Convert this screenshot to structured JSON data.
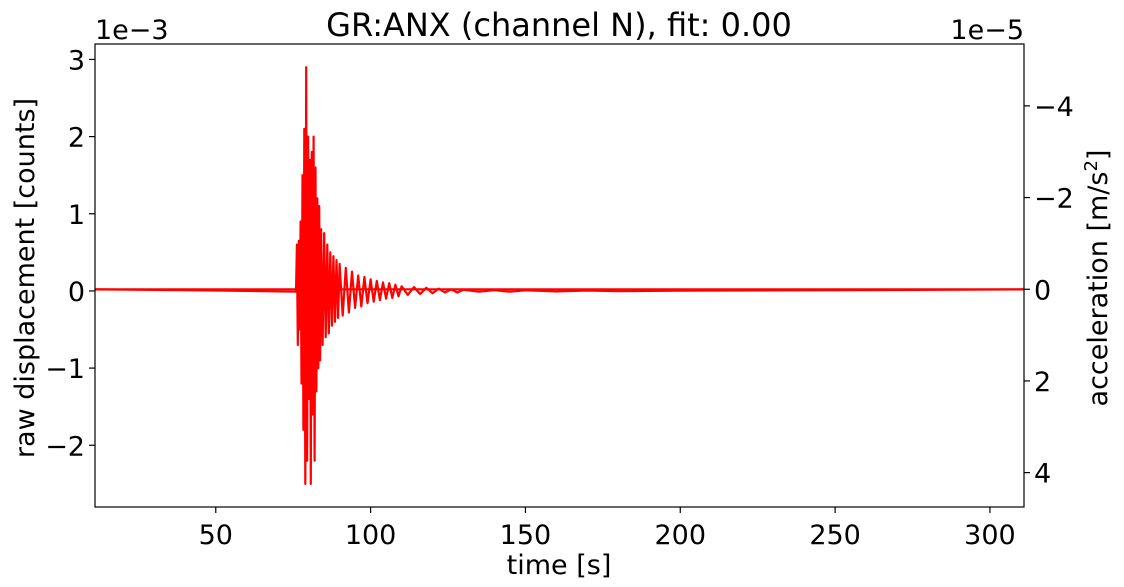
{
  "chart_data": {
    "type": "line",
    "title": "GR:ANX  (channel N), fit: 0.00",
    "xlabel": "time [s]",
    "ylabel": "raw displacement [counts]",
    "y2label_main": "acceleration [m/s",
    "y2label_sup": "2",
    "y2label_end": "]",
    "y_offset_text": "1e−3",
    "y2_offset_text": "1e−5",
    "xlim": [
      11,
      311
    ],
    "ylim": [
      -2.8,
      3.2
    ],
    "y2lim": [
      4.75,
      -5.35
    ],
    "x_ticks": [
      50,
      100,
      150,
      200,
      250,
      300
    ],
    "x_tick_labels": [
      "50",
      "100",
      "150",
      "200",
      "250",
      "300"
    ],
    "y_ticks": [
      3,
      2,
      1,
      0,
      -1,
      -2
    ],
    "y_tick_labels": [
      "3",
      "2",
      "1",
      "0",
      "−1",
      "−2"
    ],
    "y2_ticks": [
      -4,
      -2,
      0,
      2,
      4
    ],
    "y2_tick_labels": [
      "−4",
      "−2",
      "0",
      "2",
      "4"
    ],
    "grid": false,
    "line_color": "#ff0000",
    "series": [
      {
        "axis": "left",
        "x": [
          11,
          40,
          60,
          75.9,
          76.2,
          76.5,
          76.8,
          77.1,
          77.4,
          77.7,
          78.0,
          78.3,
          78.6,
          78.9,
          79.2,
          79.5,
          79.8,
          80.1,
          80.4,
          80.7,
          81.0,
          81.3,
          81.6,
          81.9,
          82.2,
          82.5,
          82.8,
          83.1,
          83.4,
          83.7,
          84.0,
          84.5,
          85.0,
          85.5,
          86.0,
          86.5,
          87.0,
          87.5,
          88.0,
          88.5,
          89.0,
          89.5,
          90.0,
          91.0,
          92.0,
          93.0,
          94.0,
          95.0,
          96.0,
          97.0,
          98.0,
          99.0,
          100.0,
          101.0,
          102.0,
          103.0,
          104.0,
          105.0,
          106.0,
          107.0,
          108.0,
          109.0,
          110.0,
          112.0,
          114.0,
          116.0,
          118.0,
          120.0,
          122.0,
          124.0,
          126.0,
          128.0,
          130.0,
          135.0,
          140.0,
          145.0,
          150.0,
          160.0,
          170.0,
          180.0,
          200.0,
          250.0,
          311.0
        ],
        "y": [
          0.02,
          0.01,
          0.0,
          -0.01,
          0.6,
          -0.7,
          0.65,
          -0.5,
          0.9,
          -1.2,
          1.5,
          -1.8,
          2.1,
          -2.5,
          2.9,
          -2.2,
          2.0,
          -1.4,
          1.7,
          -2.5,
          1.8,
          -1.6,
          2.0,
          -2.2,
          1.6,
          -1.3,
          1.2,
          -1.0,
          1.1,
          -0.9,
          0.8,
          -0.7,
          0.75,
          -0.6,
          0.6,
          -0.55,
          0.5,
          -0.45,
          0.45,
          -0.4,
          0.4,
          -0.35,
          0.35,
          -0.32,
          0.3,
          -0.28,
          0.25,
          -0.22,
          0.2,
          -0.2,
          0.18,
          -0.16,
          0.15,
          -0.14,
          0.13,
          -0.12,
          0.11,
          -0.1,
          0.1,
          -0.09,
          0.08,
          -0.07,
          0.06,
          -0.05,
          0.05,
          -0.04,
          0.04,
          -0.03,
          0.03,
          -0.02,
          0.02,
          -0.02,
          0.015,
          -0.01,
          0.01,
          -0.01,
          0.008,
          -0.006,
          0.005,
          -0.004,
          0.003,
          0.01,
          0.02
        ]
      },
      {
        "axis": "right",
        "x": [
          11,
          311
        ],
        "y": [
          0,
          0
        ]
      }
    ]
  }
}
